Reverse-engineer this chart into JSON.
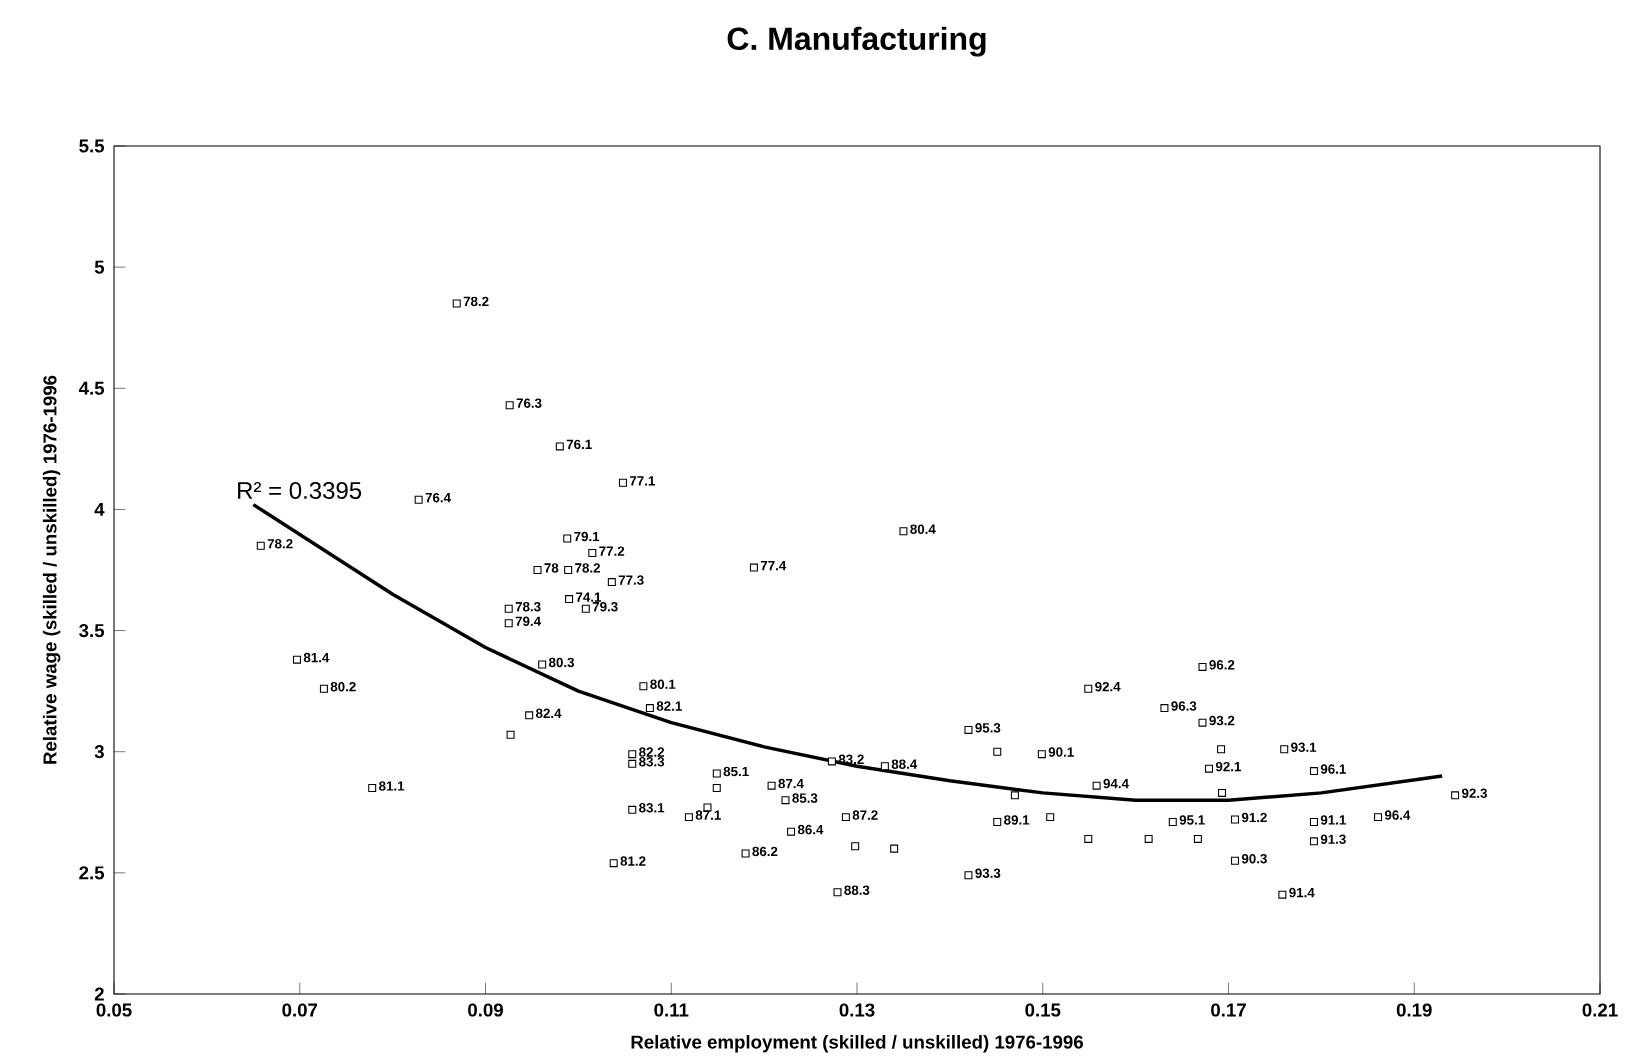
{
  "chart_data": {
    "type": "scatter",
    "title": "C. Manufacturing",
    "xlabel": "Relative employment (skilled / unskilled) 1976-1996",
    "ylabel": "Relative wage (skilled / unskilled) 1976-1996",
    "xlim": [
      0.05,
      0.21
    ],
    "ylim": [
      2,
      5.5
    ],
    "xticks": [
      0.05,
      0.07,
      0.09,
      0.11,
      0.13,
      0.15,
      0.17,
      0.19,
      0.21
    ],
    "yticks": [
      2,
      2.5,
      3,
      3.5,
      4,
      4.5,
      5,
      5.5
    ],
    "grid": false,
    "marker": "square",
    "series": [
      {
        "color": "#000000",
        "x": [
          0.0869,
          0.0926,
          0.098,
          0.0828,
          0.0658,
          0.1048,
          0.135,
          0.1189,
          0.0988,
          0.1015,
          0.0956,
          0.0989,
          0.1036,
          0.099,
          0.1008,
          0.0925,
          0.0925,
          0.0697,
          0.0726,
          0.0961,
          0.0947,
          0.0927,
          0.0778,
          0.107,
          0.1077,
          0.1058,
          0.1058,
          0.1058,
          0.1038,
          0.1149,
          0.1149,
          0.1208,
          0.1119,
          0.1139,
          0.1223,
          0.118,
          0.1229,
          0.1288,
          0.1298,
          0.1279,
          0.142,
          0.1273,
          0.133,
          0.134,
          0.142,
          0.1451,
          0.1499,
          0.147,
          0.1451,
          0.1508,
          0.1558,
          0.1549,
          0.1672,
          0.1631,
          0.1672,
          0.1692,
          0.176,
          0.1679,
          0.1792,
          0.1693,
          0.1707,
          0.164,
          0.1792,
          0.1861,
          0.1792,
          0.1707,
          0.1758,
          0.1944,
          0.1549,
          0.1614,
          0.1667
        ],
        "values": [
          4.85,
          4.43,
          4.26,
          4.04,
          3.85,
          4.11,
          3.91,
          3.76,
          3.88,
          3.82,
          3.75,
          3.75,
          3.7,
          3.63,
          3.59,
          3.59,
          3.53,
          3.38,
          3.26,
          3.36,
          3.15,
          3.07,
          2.85,
          3.27,
          3.18,
          2.99,
          2.95,
          2.76,
          2.54,
          2.91,
          2.85,
          2.86,
          2.73,
          2.77,
          2.8,
          2.58,
          2.67,
          2.73,
          2.61,
          2.42,
          2.49,
          2.96,
          2.94,
          2.6,
          3.09,
          3.0,
          2.99,
          2.82,
          2.71,
          2.73,
          2.86,
          3.26,
          3.35,
          3.18,
          3.12,
          3.01,
          3.01,
          2.93,
          2.92,
          2.83,
          2.72,
          2.71,
          2.71,
          2.73,
          2.63,
          2.55,
          2.41,
          2.82,
          2.64,
          2.64,
          2.64
        ]
      },
      {
        "type": "line",
        "color": "#000000",
        "marker": "none",
        "line_style": "solid",
        "x": [
          0.065,
          0.08,
          0.09,
          0.1,
          0.11,
          0.12,
          0.13,
          0.14,
          0.15,
          0.16,
          0.17,
          0.18,
          0.193
        ],
        "values": [
          4.02,
          3.65,
          3.43,
          3.25,
          3.12,
          3.02,
          2.94,
          2.88,
          2.83,
          2.8,
          2.8,
          2.83,
          2.9
        ]
      }
    ],
    "annotations": [
      "R² = 0.3395",
      {
        "text": "78.2",
        "x": 0.0869,
        "y": 4.85
      },
      {
        "text": "76.3",
        "x": 0.0926,
        "y": 4.43
      },
      {
        "text": "76.1",
        "x": 0.098,
        "y": 4.26
      },
      {
        "text": "76.4",
        "x": 0.0828,
        "y": 4.04
      },
      {
        "text": "78.2",
        "x": 0.0658,
        "y": 3.85
      },
      {
        "text": "77.1",
        "x": 0.1048,
        "y": 4.11
      },
      {
        "text": "80.4",
        "x": 0.135,
        "y": 3.91
      },
      {
        "text": "77.4",
        "x": 0.1189,
        "y": 3.76
      },
      {
        "text": "79.1",
        "x": 0.0988,
        "y": 3.88
      },
      {
        "text": "77.2",
        "x": 0.1015,
        "y": 3.82
      },
      {
        "text": "78",
        "x": 0.0956,
        "y": 3.75
      },
      {
        "text": "78.2",
        "x": 0.0989,
        "y": 3.75
      },
      {
        "text": "77.3",
        "x": 0.1036,
        "y": 3.7
      },
      {
        "text": "74.1",
        "x": 0.099,
        "y": 3.63
      },
      {
        "text": "79.3",
        "x": 0.1008,
        "y": 3.59
      },
      {
        "text": "78.3",
        "x": 0.0925,
        "y": 3.59
      },
      {
        "text": "79.4",
        "x": 0.0925,
        "y": 3.53
      },
      {
        "text": "81.4",
        "x": 0.0697,
        "y": 3.38
      },
      {
        "text": "80.2",
        "x": 0.0726,
        "y": 3.26
      },
      {
        "text": "80.3",
        "x": 0.0961,
        "y": 3.36
      },
      {
        "text": "82.4",
        "x": 0.0947,
        "y": 3.15
      },
      {
        "text": "81.1",
        "x": 0.0778,
        "y": 2.85
      },
      {
        "text": "80.1",
        "x": 0.107,
        "y": 3.27
      },
      {
        "text": "82.1",
        "x": 0.1077,
        "y": 3.18
      },
      {
        "text": "82.2",
        "x": 0.1058,
        "y": 2.99
      },
      {
        "text": "83.3",
        "x": 0.1058,
        "y": 2.95
      },
      {
        "text": "83.1",
        "x": 0.1058,
        "y": 2.76
      },
      {
        "text": "81.2",
        "x": 0.1038,
        "y": 2.54
      },
      {
        "text": "85.1",
        "x": 0.1149,
        "y": 2.91
      },
      {
        "text": "87.4",
        "x": 0.1208,
        "y": 2.86
      },
      {
        "text": "87.1",
        "x": 0.1119,
        "y": 2.73
      },
      {
        "text": "85.3",
        "x": 0.1223,
        "y": 2.8
      },
      {
        "text": "86.2",
        "x": 0.118,
        "y": 2.58
      },
      {
        "text": "86.4",
        "x": 0.1229,
        "y": 2.67
      },
      {
        "text": "87.2",
        "x": 0.1288,
        "y": 2.73
      },
      {
        "text": "88.3",
        "x": 0.1279,
        "y": 2.42
      },
      {
        "text": "93.3",
        "x": 0.142,
        "y": 2.49
      },
      {
        "text": "83.2",
        "x": 0.1273,
        "y": 2.96
      },
      {
        "text": "88.4",
        "x": 0.133,
        "y": 2.94
      },
      {
        "text": "95.3",
        "x": 0.142,
        "y": 3.09
      },
      {
        "text": "90.1",
        "x": 0.1499,
        "y": 2.99
      },
      {
        "text": "89.1",
        "x": 0.1451,
        "y": 2.71
      },
      {
        "text": "94.4",
        "x": 0.1558,
        "y": 2.86
      },
      {
        "text": "92.4",
        "x": 0.1549,
        "y": 3.26
      },
      {
        "text": "96.2",
        "x": 0.1672,
        "y": 3.35
      },
      {
        "text": "96.3",
        "x": 0.1631,
        "y": 3.18
      },
      {
        "text": "93.2",
        "x": 0.1672,
        "y": 3.12
      },
      {
        "text": "93.1",
        "x": 0.176,
        "y": 3.01
      },
      {
        "text": "92.1",
        "x": 0.1679,
        "y": 2.93
      },
      {
        "text": "96.1",
        "x": 0.1792,
        "y": 2.92
      },
      {
        "text": "91.2",
        "x": 0.1707,
        "y": 2.72
      },
      {
        "text": "95.1",
        "x": 0.164,
        "y": 2.71
      },
      {
        "text": "91.1",
        "x": 0.1792,
        "y": 2.71
      },
      {
        "text": "96.4",
        "x": 0.1861,
        "y": 2.73
      },
      {
        "text": "91.3",
        "x": 0.1792,
        "y": 2.63
      },
      {
        "text": "90.3",
        "x": 0.1707,
        "y": 2.55
      },
      {
        "text": "91.4",
        "x": 0.1758,
        "y": 2.41
      },
      {
        "text": "92.3",
        "x": 0.1944,
        "y": 2.82
      }
    ]
  }
}
